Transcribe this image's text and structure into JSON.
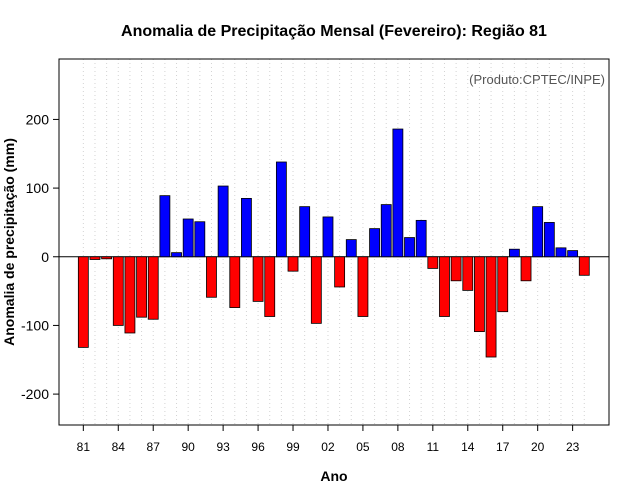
{
  "chart_data": {
    "type": "bar",
    "title": "Anomalia de Precipitação Mensal (Fevereiro): Região 81",
    "xlabel": "Ano",
    "ylabel": "Anomalia de precipitação (mm)",
    "credit": "(Produto:CPTEC/INPE)",
    "ylim": [
      -245,
      288
    ],
    "yticks": [
      -200,
      -100,
      0,
      100,
      200
    ],
    "ytick_labels": [
      "-200",
      "-100",
      "0",
      "100",
      "200"
    ],
    "xtick_labels": [
      "81",
      "84",
      "87",
      "90",
      "93",
      "96",
      "99",
      "02",
      "05",
      "08",
      "11",
      "14",
      "17",
      "20",
      "23"
    ],
    "xtick_every": 3,
    "years": [
      1981,
      1982,
      1983,
      1984,
      1985,
      1986,
      1987,
      1988,
      1989,
      1990,
      1991,
      1992,
      1993,
      1994,
      1995,
      1996,
      1997,
      1998,
      1999,
      2000,
      2001,
      2002,
      2003,
      2004,
      2005,
      2006,
      2007,
      2008,
      2009,
      2010,
      2011,
      2012,
      2013,
      2014,
      2015,
      2016,
      2017,
      2018,
      2019,
      2020,
      2021,
      2022,
      2023,
      2024
    ],
    "values": [
      -132,
      -4,
      -3,
      -100,
      -111,
      -88,
      -91,
      89,
      6,
      55,
      51,
      -59,
      103,
      -74,
      85,
      -65,
      -87,
      138,
      -21,
      73,
      -97,
      58,
      -44,
      25,
      -87,
      41,
      76,
      186,
      28,
      53,
      -17,
      -87,
      -35,
      -49,
      -109,
      -146,
      -80,
      11,
      -35,
      73,
      50,
      13,
      9,
      -27
    ],
    "positive_color": "#0000ff",
    "negative_color": "#ff0000",
    "grid": true,
    "gridline_color": "#d3d3d3"
  }
}
